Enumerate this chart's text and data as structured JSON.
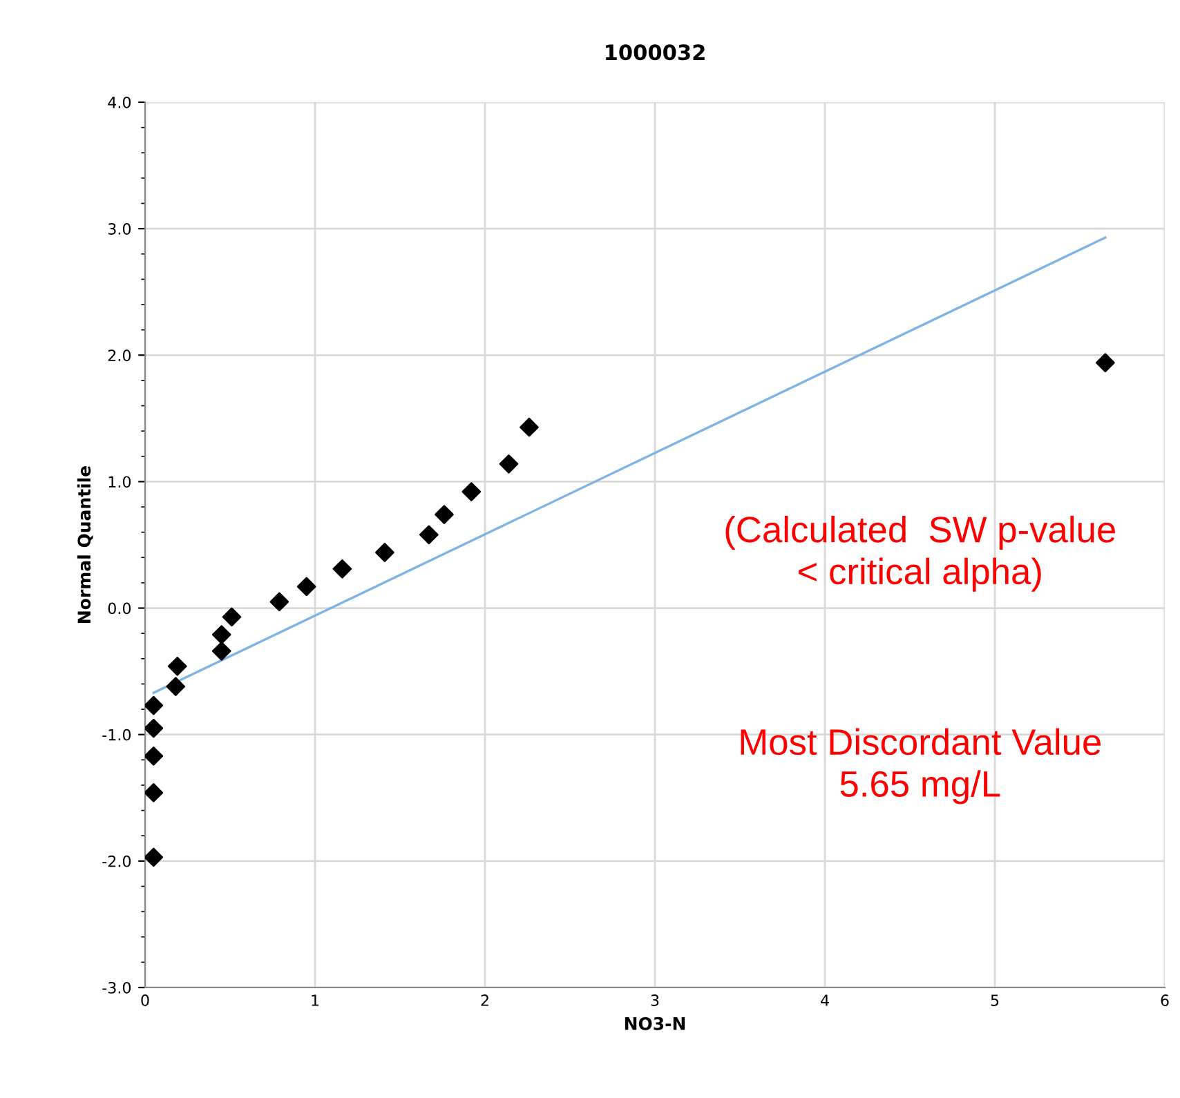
{
  "chart_data": {
    "type": "scatter",
    "title": "1000032",
    "xlabel": "NO3-N",
    "ylabel": "Normal Quantile",
    "series": [
      {
        "color": "#000000",
        "marker": "diamond",
        "x": [
          0.05,
          0.05,
          0.05,
          0.05,
          0.05,
          0.18,
          0.19,
          0.45,
          0.45,
          0.51,
          0.79,
          0.95,
          1.16,
          1.41,
          1.67,
          1.76,
          1.92,
          2.14,
          2.26,
          5.65
        ],
        "values": [
          -1.97,
          -1.46,
          -1.17,
          -0.95,
          -0.77,
          -0.62,
          -0.46,
          -0.34,
          -0.21,
          -0.07,
          0.05,
          0.17,
          0.31,
          0.44,
          0.58,
          0.74,
          0.92,
          1.14,
          1.43,
          1.94
        ]
      },
      {
        "type": "line",
        "color": "#7fb2e5",
        "marker": "none",
        "line_style": "solid",
        "x": [
          0.05,
          5.65
        ],
        "values": [
          -0.67,
          2.93
        ]
      }
    ],
    "xlim": [
      0,
      6
    ],
    "xticks": [
      0,
      1,
      2,
      3,
      4,
      5,
      6
    ],
    "ylim": [
      -3,
      4
    ],
    "yticks": [
      {
        "value": -3,
        "label": "-3.0"
      },
      {
        "value": -2,
        "label": "-2.0"
      },
      {
        "value": -1,
        "label": "-1.0"
      },
      {
        "value": 0,
        "label": "0.0"
      },
      {
        "value": 1,
        "label": "1.0"
      },
      {
        "value": 2,
        "label": "2.0"
      },
      {
        "value": 3,
        "label": "3.0"
      },
      {
        "value": 4,
        "label": "4.0"
      }
    ],
    "grid": true,
    "legend": false,
    "annotations": [
      "(Calculated  SW p-value\n< critical alpha)",
      "Most Discordant Value\n5.65 mg/L"
    ]
  }
}
